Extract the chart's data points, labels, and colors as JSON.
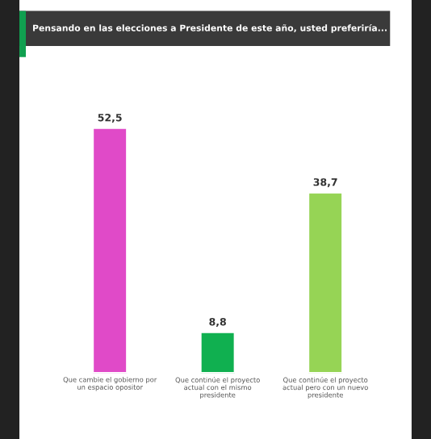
{
  "chart_data": {
    "type": "bar",
    "title": "Pensando en las elecciones a Presidente de este año, usted preferiría...",
    "categories": [
      "Que cambie el gobierno por un espacio opositor",
      "Que continúe el proyecto actual con el mismo presidente",
      "Que continúe el proyecto actual pero con un nuevo presidente"
    ],
    "values": [
      52.5,
      8.8,
      38.7
    ],
    "colors": [
      "#e04ac8",
      "#10b050",
      "#96d455"
    ],
    "value_labels": [
      "52,5",
      "8,8",
      "38,7"
    ]
  }
}
